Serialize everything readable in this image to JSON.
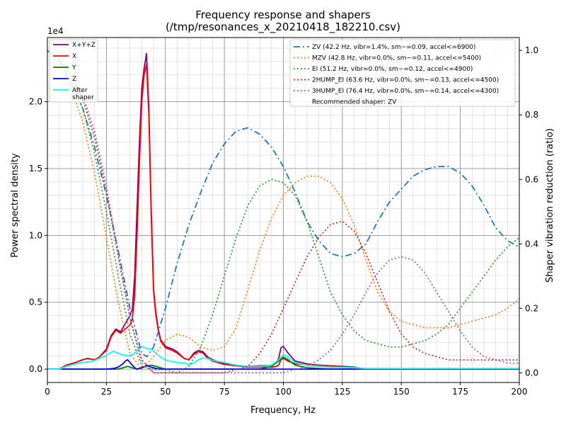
{
  "chart_data": {
    "type": "line",
    "title": "Frequency response and shapers",
    "subtitle": "(/tmp/resonances_x_20210418_182210.csv)",
    "xlabel": "Frequency, Hz",
    "ylabel": "Power spectral density",
    "y2label": "Shaper vibration reduction (ratio)",
    "y_offset_text": "1e4",
    "xlim": [
      0,
      200
    ],
    "ylim": [
      -1000,
      24800
    ],
    "y2lim": [
      -0.03,
      1.04
    ],
    "grid": true,
    "x_ticks": [
      0,
      25,
      50,
      75,
      100,
      125,
      150,
      175,
      200
    ],
    "x_tick_labels": [
      "0",
      "25",
      "50",
      "75",
      "100",
      "125",
      "150",
      "175",
      "200"
    ],
    "y_ticks": [
      0,
      5000,
      10000,
      15000,
      20000
    ],
    "y_tick_labels": [
      "0.0",
      "0.5",
      "1.0",
      "1.5",
      "2.0"
    ],
    "y2_ticks": [
      0,
      0.2,
      0.4,
      0.6,
      0.8,
      1.0
    ],
    "y2_tick_labels": [
      "0.0",
      "0.2",
      "0.4",
      "0.6",
      "0.8",
      "1.0"
    ],
    "psd_legend_position": "top-left",
    "shaper_legend_position": "top-right",
    "psd_series": [
      {
        "name": "X+Y+Z",
        "color": "#800080",
        "x": [
          0,
          5,
          8,
          12,
          15,
          17,
          20,
          22,
          25,
          27,
          29,
          31,
          33,
          35,
          36,
          37,
          38,
          39,
          40,
          41,
          42,
          43,
          44,
          45,
          46,
          47,
          48,
          50,
          53,
          55,
          58,
          60,
          62,
          64,
          66,
          68,
          70,
          75,
          80,
          85,
          90,
          95,
          97,
          98,
          99,
          100,
          102,
          105,
          110,
          115,
          120,
          125,
          130,
          133,
          135,
          140,
          150,
          160,
          170,
          180,
          190,
          200
        ],
        "y": [
          0,
          0,
          300,
          500,
          700,
          800,
          700,
          900,
          1500,
          2500,
          3000,
          2800,
          3400,
          4000,
          4500,
          7000,
          12000,
          17000,
          21000,
          22500,
          23600,
          19500,
          12000,
          6000,
          4200,
          3000,
          2200,
          1700,
          1500,
          1300,
          800,
          700,
          1200,
          1400,
          1300,
          900,
          700,
          400,
          300,
          200,
          250,
          300,
          500,
          800,
          1600,
          1700,
          1200,
          600,
          400,
          300,
          250,
          200,
          150,
          50,
          0,
          0,
          0,
          0,
          0,
          0,
          0,
          0
        ]
      },
      {
        "name": "X",
        "color": "#ff0000",
        "x": [
          0,
          5,
          8,
          12,
          15,
          17,
          20,
          22,
          25,
          27,
          29,
          31,
          33,
          35,
          36,
          37,
          38,
          39,
          40,
          41,
          42,
          43,
          44,
          45,
          46,
          47,
          48,
          50,
          53,
          55,
          58,
          60,
          62,
          64,
          66,
          68,
          70,
          75,
          80,
          85,
          90,
          95,
          97,
          98,
          99,
          100,
          102,
          105,
          110,
          115,
          120,
          125,
          130,
          133,
          135,
          140,
          150,
          160,
          170,
          180,
          190,
          200
        ],
        "y": [
          0,
          0,
          300,
          500,
          700,
          800,
          700,
          900,
          1400,
          2400,
          2900,
          2700,
          3000,
          3300,
          3800,
          5500,
          10000,
          15500,
          20000,
          22000,
          22800,
          19000,
          11500,
          5800,
          4000,
          2900,
          2100,
          1600,
          1400,
          1200,
          800,
          700,
          1100,
          1300,
          1200,
          800,
          600,
          350,
          250,
          150,
          150,
          150,
          200,
          300,
          700,
          800,
          600,
          400,
          350,
          300,
          250,
          200,
          150,
          50,
          0,
          0,
          0,
          0,
          0,
          0,
          0,
          0
        ]
      },
      {
        "name": "Y",
        "color": "#008000",
        "x": [
          0,
          10,
          20,
          25,
          30,
          32,
          34,
          36,
          38,
          40,
          42,
          44,
          46,
          48,
          50,
          55,
          60,
          65,
          70,
          80,
          90,
          95,
          98,
          100,
          102,
          105,
          110,
          120,
          135,
          150,
          200
        ],
        "y": [
          0,
          0,
          0,
          0,
          0,
          100,
          200,
          100,
          0,
          100,
          200,
          300,
          200,
          100,
          0,
          0,
          0,
          0,
          0,
          0,
          0,
          200,
          600,
          900,
          700,
          300,
          100,
          0,
          0,
          0,
          0
        ]
      },
      {
        "name": "Z",
        "color": "#0000ff",
        "x": [
          0,
          10,
          20,
          25,
          28,
          30,
          32,
          33,
          34,
          35,
          36,
          37,
          38,
          40,
          42,
          44,
          46,
          48,
          50,
          55,
          60,
          70,
          80,
          90,
          100,
          150,
          200
        ],
        "y": [
          0,
          0,
          0,
          0,
          50,
          150,
          400,
          600,
          700,
          500,
          300,
          100,
          0,
          100,
          300,
          150,
          50,
          0,
          0,
          0,
          0,
          0,
          0,
          0,
          0,
          0,
          0
        ]
      },
      {
        "name": "After\nshaper",
        "color": "#00ffff",
        "x": [
          0,
          5,
          8,
          12,
          15,
          18,
          20,
          22,
          25,
          27,
          28,
          30,
          32,
          35,
          37,
          38,
          40,
          41,
          42,
          44,
          46,
          48,
          50,
          52,
          55,
          58,
          60,
          62,
          64,
          66,
          68,
          70,
          75,
          80,
          85,
          90,
          95,
          98,
          100,
          102,
          105,
          110,
          115,
          120,
          130,
          135,
          140,
          150,
          160,
          170,
          180,
          190,
          200
        ],
        "y": [
          0,
          0,
          200,
          400,
          500,
          550,
          650,
          800,
          1000,
          1250,
          1350,
          1200,
          1050,
          1000,
          1200,
          1400,
          1700,
          1650,
          1550,
          1500,
          1200,
          900,
          700,
          600,
          500,
          450,
          350,
          450,
          700,
          850,
          800,
          650,
          500,
          300,
          200,
          200,
          300,
          700,
          1100,
          900,
          500,
          300,
          200,
          150,
          100,
          50,
          50,
          50,
          50,
          50,
          50,
          50,
          50
        ]
      }
    ],
    "shaper_series": [
      {
        "name": "ZV (42.2 Hz, vibr=1.4%, sm~=0.09, accel<=6900)",
        "color": "#1f77b4",
        "dash": "dashdot",
        "x": [
          0,
          5,
          10,
          15,
          20,
          25,
          30,
          35,
          40,
          42.2,
          45,
          50,
          55,
          60,
          65,
          70,
          75,
          80,
          85,
          90,
          95,
          100,
          105,
          110,
          115,
          120,
          125,
          130,
          135,
          140,
          145,
          150,
          155,
          160,
          165,
          170,
          175,
          180,
          185,
          190,
          195,
          200
        ],
        "y": [
          1.0,
          0.97,
          0.9,
          0.82,
          0.7,
          0.55,
          0.38,
          0.2,
          0.06,
          0.05,
          0.08,
          0.2,
          0.34,
          0.46,
          0.56,
          0.65,
          0.71,
          0.75,
          0.76,
          0.74,
          0.7,
          0.64,
          0.56,
          0.47,
          0.41,
          0.37,
          0.36,
          0.37,
          0.4,
          0.47,
          0.53,
          0.57,
          0.61,
          0.63,
          0.64,
          0.64,
          0.62,
          0.58,
          0.52,
          0.45,
          0.41,
          0.39
        ]
      },
      {
        "name": "MZV (42.8 Hz, vibr=0.0%, sm~=0.11, accel<=5400)",
        "color": "#ff7f0e",
        "dash": "dot",
        "x": [
          0,
          5,
          10,
          15,
          20,
          25,
          30,
          35,
          40,
          45,
          50,
          55,
          60,
          65,
          70,
          75,
          80,
          85,
          90,
          95,
          100,
          105,
          110,
          115,
          120,
          125,
          130,
          135,
          140,
          145,
          150,
          155,
          160,
          165,
          170,
          175,
          180,
          185,
          190,
          195,
          200
        ],
        "y": [
          1.0,
          0.95,
          0.88,
          0.78,
          0.62,
          0.42,
          0.22,
          0.06,
          0.01,
          0.05,
          0.1,
          0.12,
          0.11,
          0.08,
          0.07,
          0.08,
          0.14,
          0.26,
          0.38,
          0.48,
          0.55,
          0.59,
          0.61,
          0.61,
          0.59,
          0.54,
          0.46,
          0.35,
          0.25,
          0.19,
          0.16,
          0.15,
          0.14,
          0.14,
          0.14,
          0.15,
          0.16,
          0.17,
          0.18,
          0.2,
          0.23
        ]
      },
      {
        "name": "EI (51.2 Hz, vibr=0.0%, sm~=0.12, accel<=4900)",
        "color": "#2ca02c",
        "dash": "dot",
        "x": [
          0,
          5,
          10,
          15,
          20,
          25,
          30,
          35,
          40,
          45,
          50,
          55,
          60,
          65,
          70,
          75,
          80,
          85,
          90,
          95,
          100,
          105,
          110,
          115,
          120,
          125,
          130,
          135,
          140,
          145,
          150,
          155,
          160,
          165,
          170,
          175,
          180,
          185,
          190,
          195,
          200
        ],
        "y": [
          1.0,
          0.96,
          0.9,
          0.82,
          0.68,
          0.5,
          0.3,
          0.12,
          0.02,
          0.01,
          0.01,
          0.0,
          0.02,
          0.08,
          0.18,
          0.3,
          0.42,
          0.52,
          0.58,
          0.6,
          0.59,
          0.55,
          0.47,
          0.36,
          0.25,
          0.18,
          0.13,
          0.1,
          0.09,
          0.08,
          0.08,
          0.09,
          0.1,
          0.12,
          0.15,
          0.2,
          0.25,
          0.3,
          0.35,
          0.39,
          0.42
        ]
      },
      {
        "name": "2HUMP_EI (63.6 Hz, vibr=0.0%, sm~=0.13, accel<=4500)",
        "color": "#d62728",
        "dash": "dot",
        "x": [
          0,
          5,
          10,
          15,
          20,
          25,
          30,
          35,
          40,
          45,
          50,
          55,
          60,
          65,
          70,
          75,
          80,
          85,
          90,
          95,
          100,
          105,
          110,
          115,
          120,
          125,
          130,
          135,
          140,
          145,
          150,
          155,
          160,
          165,
          170,
          175,
          180,
          185,
          190,
          195,
          200
        ],
        "y": [
          1.0,
          0.97,
          0.92,
          0.85,
          0.73,
          0.56,
          0.36,
          0.17,
          0.04,
          0.0,
          0.0,
          0.0,
          0.0,
          0.0,
          0.0,
          0.0,
          0.01,
          0.02,
          0.06,
          0.12,
          0.2,
          0.28,
          0.36,
          0.42,
          0.46,
          0.47,
          0.44,
          0.37,
          0.28,
          0.19,
          0.12,
          0.08,
          0.06,
          0.05,
          0.04,
          0.04,
          0.04,
          0.04,
          0.04,
          0.04,
          0.04
        ]
      },
      {
        "name": "3HUMP_EI (76.4 Hz, vibr=0.0%, sm~=0.14, accel<=4300)",
        "color": "#9467bd",
        "dash": "dot",
        "x": [
          0,
          5,
          10,
          15,
          20,
          25,
          30,
          35,
          40,
          45,
          50,
          60,
          70,
          80,
          90,
          100,
          105,
          110,
          115,
          120,
          125,
          130,
          135,
          140,
          145,
          150,
          155,
          160,
          165,
          170,
          175,
          180,
          185,
          190,
          195,
          200
        ],
        "y": [
          1.0,
          0.97,
          0.93,
          0.86,
          0.75,
          0.58,
          0.37,
          0.17,
          0.03,
          0.0,
          0.0,
          0.0,
          0.0,
          0.0,
          0.0,
          0.0,
          0.01,
          0.02,
          0.04,
          0.07,
          0.12,
          0.18,
          0.25,
          0.31,
          0.35,
          0.36,
          0.35,
          0.31,
          0.25,
          0.19,
          0.13,
          0.08,
          0.05,
          0.04,
          0.03,
          0.03
        ]
      }
    ],
    "annotation": "Recommended shaper: ZV"
  }
}
